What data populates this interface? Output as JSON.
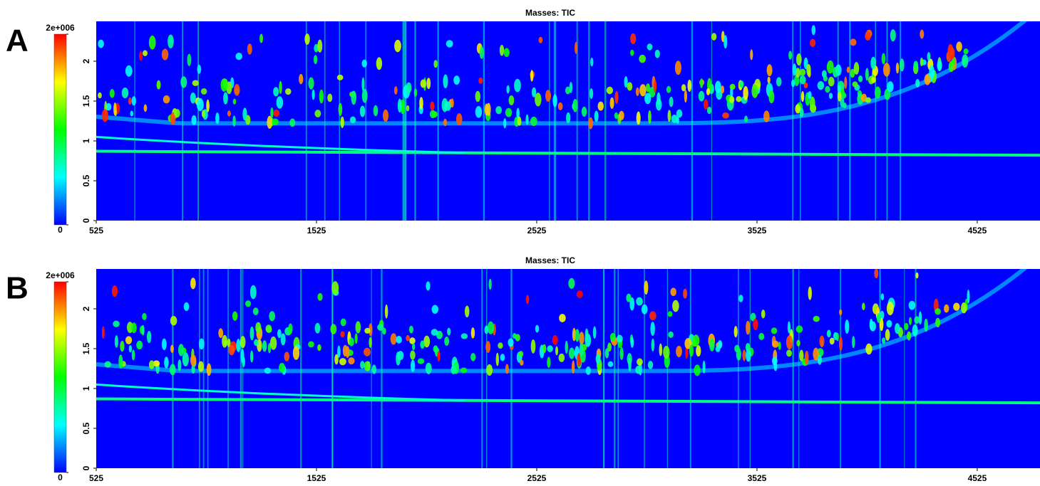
{
  "chart_data": [
    {
      "type": "heatmap",
      "panel_label": "A",
      "title": "Masses: TIC",
      "xlim": [
        525,
        4810
      ],
      "xticks": [
        525,
        1525,
        2525,
        3525,
        4525
      ],
      "ylim": [
        0,
        2.5
      ],
      "yticks": [
        0,
        0.5,
        1,
        1.5,
        2
      ],
      "colorbar_lim": [
        0,
        2000000
      ],
      "colorbar_ticks": [
        0,
        {
          "value": 2000000,
          "label": "2e+006"
        }
      ],
      "colormap": [
        "#0000ff",
        "#00ffff",
        "#00ff00",
        "#ffff00",
        "#ff0000"
      ]
    },
    {
      "type": "heatmap",
      "panel_label": "B",
      "title": "Masses: TIC",
      "xlim": [
        525,
        4810
      ],
      "xticks": [
        525,
        1525,
        2525,
        3525,
        4525
      ],
      "ylim": [
        0,
        2.5
      ],
      "yticks": [
        0,
        0.5,
        1,
        1.5,
        2
      ],
      "colorbar_lim": [
        0,
        2000000
      ],
      "colorbar_ticks": [
        0,
        {
          "value": 2000000,
          "label": "2e+006"
        }
      ],
      "colormap": [
        "#0000ff",
        "#00ffff",
        "#00ff00",
        "#ffff00",
        "#ff0000"
      ]
    }
  ]
}
